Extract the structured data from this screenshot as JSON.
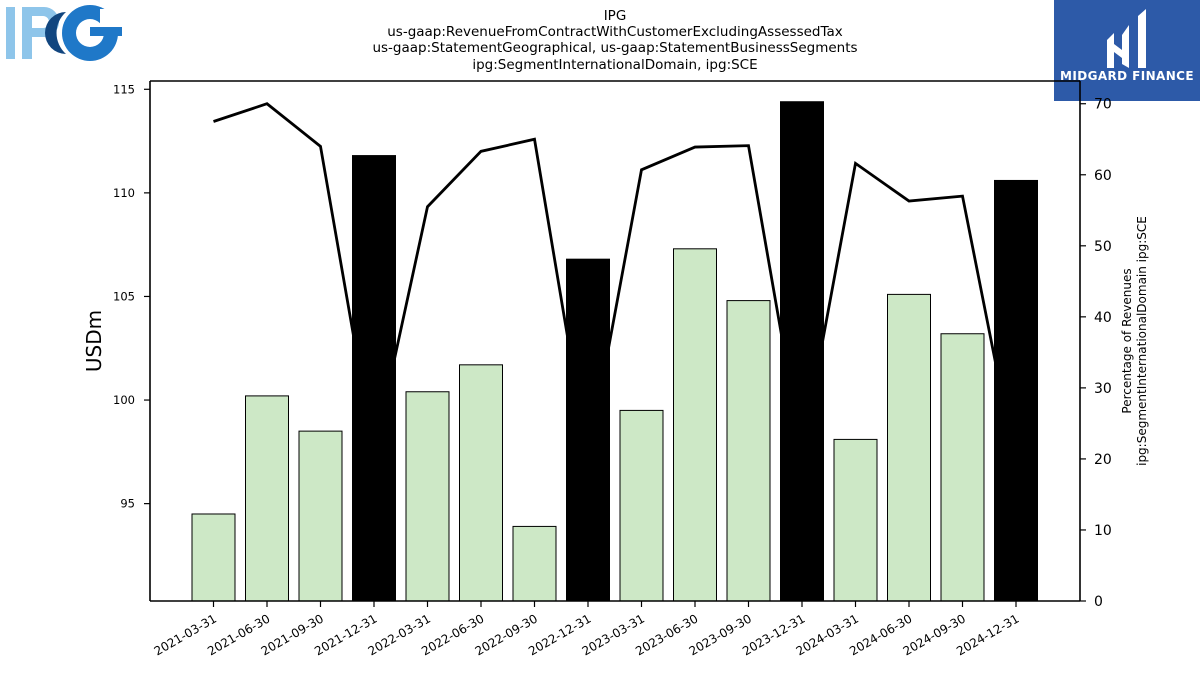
{
  "titles": [
    "IPG",
    "us-gaap:RevenueFromContractWithCustomerExcludingAssessedTax",
    "us-gaap:StatementGeographical, us-gaap:StatementBusinessSegments",
    "ipg:SegmentInternationalDomain, ipg:SCE"
  ],
  "logos": {
    "left": "IPG",
    "right": "MIDGARD FINANCE"
  },
  "colors": {
    "quarter_bar": "#cde8c6",
    "year_end_bar": "#000000",
    "line": "#000000",
    "ipg_light": "#8ec5ea",
    "ipg_dark": "#1f78c8",
    "midgard_bg": "#2d5aa8"
  },
  "chart_data": {
    "type": "bar",
    "categories": [
      "2021-03-31",
      "2021-06-30",
      "2021-09-30",
      "2021-12-31",
      "2022-03-31",
      "2022-06-30",
      "2022-09-30",
      "2022-12-31",
      "2023-03-31",
      "2023-06-30",
      "2023-09-30",
      "2023-12-31",
      "2024-03-31",
      "2024-06-30",
      "2024-09-30",
      "2024-12-31"
    ],
    "series": [
      {
        "axis": "left",
        "chart": "bar",
        "values": [
          94.5,
          100.2,
          98.5,
          111.8,
          100.4,
          101.7,
          93.9,
          106.8,
          99.5,
          107.3,
          104.8,
          114.4,
          98.1,
          105.1,
          103.2,
          110.6
        ],
        "highlight": [
          false,
          false,
          false,
          true,
          false,
          false,
          false,
          true,
          false,
          false,
          false,
          true,
          false,
          false,
          false,
          true
        ]
      },
      {
        "axis": "right",
        "chart": "line",
        "values": [
          67.5,
          70.0,
          64.0,
          20.8,
          55.5,
          63.3,
          65.0,
          20.0,
          60.7,
          63.9,
          64.1,
          20.9,
          61.6,
          56.3,
          57.0,
          19.0
        ]
      }
    ],
    "ylabel": "USDm",
    "ylabel_right": [
      "Percentage of Revenues",
      "ipg:SegmentInternationalDomain ipg:SCE"
    ],
    "ylim": [
      90.3,
      115.4
    ],
    "ylim_right": [
      0,
      73.2
    ],
    "yticks": [
      95,
      100,
      105,
      110,
      115
    ],
    "yticks_right": [
      0,
      10,
      20,
      30,
      40,
      50,
      60,
      70
    ],
    "grid": false,
    "legend": "none"
  }
}
